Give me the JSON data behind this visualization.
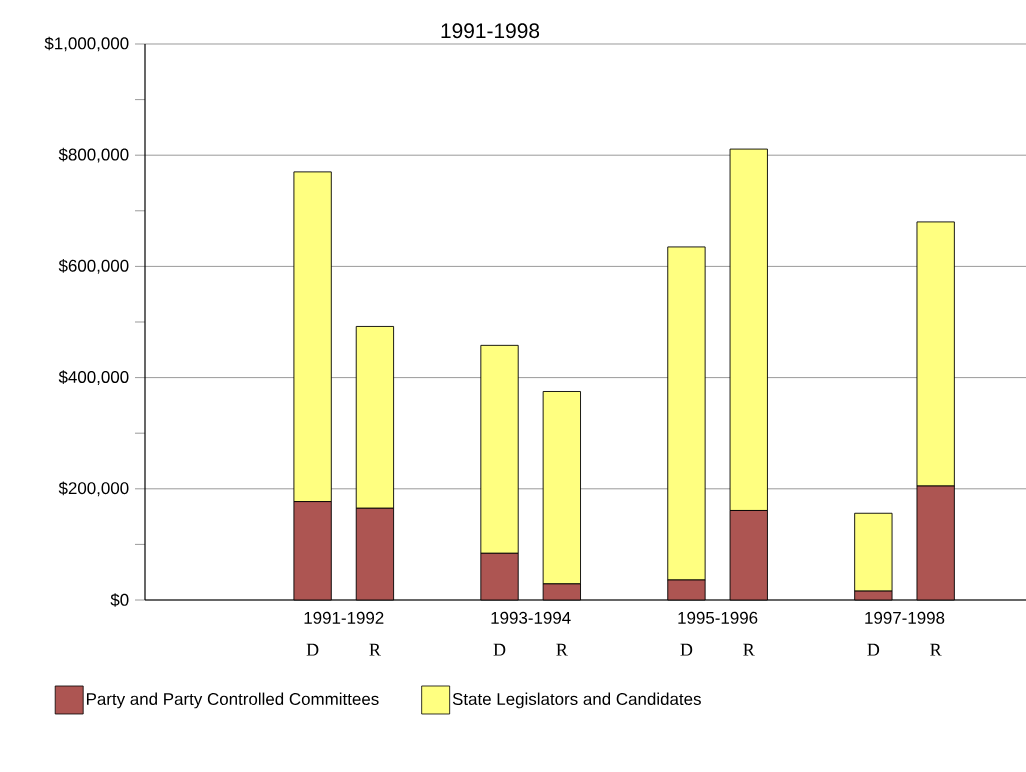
{
  "chart_data": {
    "type": "bar",
    "title": "1991-1998",
    "categories": [
      null,
      null,
      "D",
      "R",
      null,
      "D",
      "R",
      null,
      "D",
      "R",
      null,
      "D",
      "R",
      null
    ],
    "series": [
      {
        "name": "Party and Party Controlled Committees",
        "color": "#ad5552",
        "values": [
          0,
          0,
          177000,
          165000,
          0,
          84000,
          29000,
          0,
          36000,
          161000,
          0,
          16000,
          205000,
          0
        ]
      },
      {
        "name": "State Legislators and Candidates",
        "color": "#ffff80",
        "values": [
          0,
          0,
          593000,
          327000,
          0,
          374000,
          346000,
          0,
          599000,
          650000,
          0,
          140000,
          475000,
          0
        ]
      }
    ],
    "stacked": true,
    "annotations": [
      "1991-1992",
      "1993-1994",
      "1995-1996",
      "1997-1998"
    ],
    "ylim": [
      0,
      1000000
    ],
    "yticks": [
      {
        "value": 0,
        "label": "$0"
      },
      {
        "value": 100000,
        "label": null
      },
      {
        "value": 200000,
        "label": "$200,000"
      },
      {
        "value": 300000,
        "label": null
      },
      {
        "value": 400000,
        "label": "$400,000"
      },
      {
        "value": 500000,
        "label": null
      },
      {
        "value": 600000,
        "label": "$600,000"
      },
      {
        "value": 700000,
        "label": null
      },
      {
        "value": 800000,
        "label": "$800,000"
      },
      {
        "value": 900000,
        "label": null
      },
      {
        "value": 1000000,
        "label": "$1,000,000"
      }
    ],
    "grid": "y",
    "legend": "bottom"
  }
}
